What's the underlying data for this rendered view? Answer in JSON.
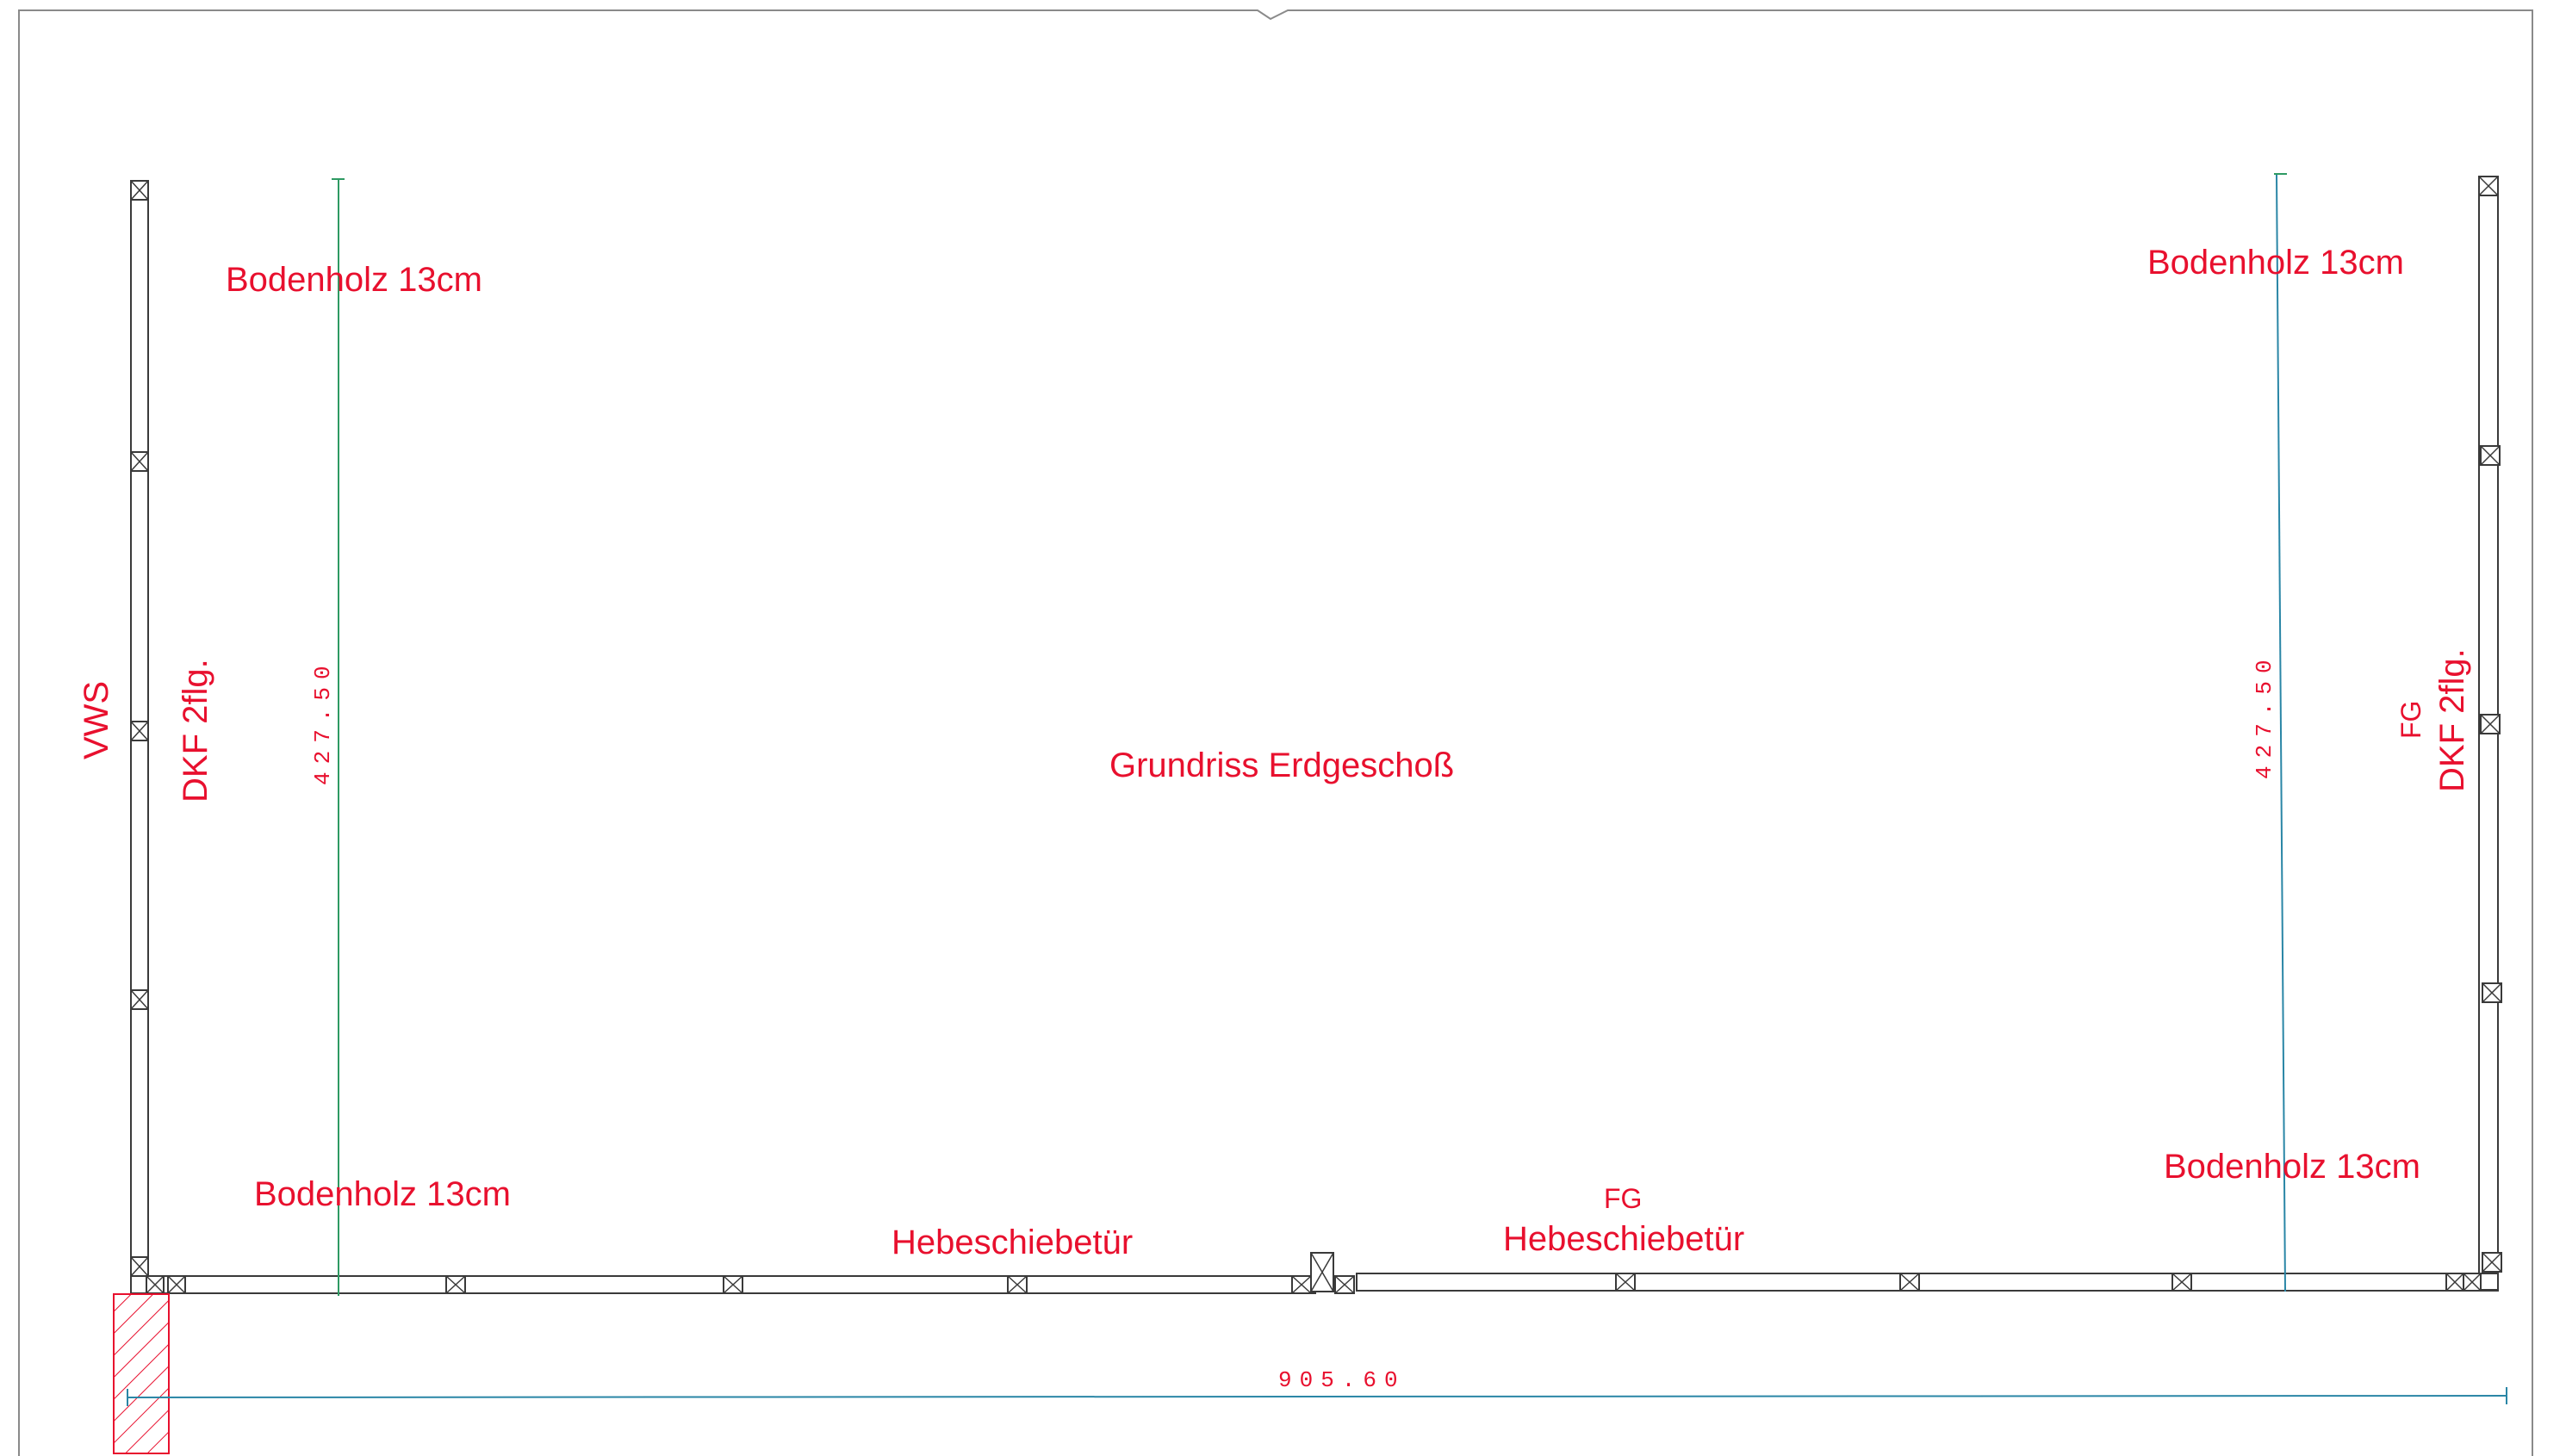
{
  "plan": {
    "title": "Grundriss Erdgeschoß",
    "labels": {
      "floor_top_left": "Bodenholz 13cm",
      "floor_top_right": "Bodenholz 13cm",
      "floor_bottom_left": "Bodenholz 13cm",
      "floor_bottom_right": "Bodenholz 13cm",
      "left_wall_vws": "VWS",
      "left_wall_window": "DKF 2flg.",
      "right_wall_fg": "FG",
      "right_wall_window": "DKF 2flg.",
      "door_left": "Hebeschiebetür",
      "door_right_fg": "FG",
      "door_right": "Hebeschiebetür"
    },
    "dimensions": {
      "left_height": "427.50",
      "right_height": "427.50",
      "bottom_width": "905.60"
    },
    "colors": {
      "annotation": "#e8102e",
      "wall": "#3a3a3a",
      "dimension_line": "#2e9a63",
      "hatch": "#e8102e"
    }
  }
}
